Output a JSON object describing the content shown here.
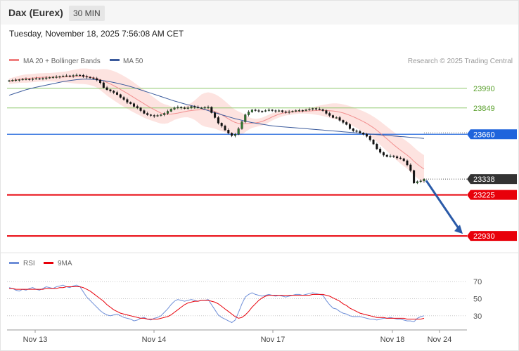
{
  "header": {
    "title": "Dax (Eurex)",
    "timeframe": "30 MIN"
  },
  "datetime": "Tuesday, November 18, 2025 7:56:08 AM CET",
  "legend": {
    "bb_label": "MA 20 + Bollinger Bands",
    "ma50_label": "MA 50",
    "rsi_label": "RSI",
    "ma9_label": "9MA"
  },
  "credit": "Research © 2025 Trading Central",
  "colors": {
    "bb": "#f08080",
    "bb_fill": "#fcd9d6",
    "ma50": "#3a5a9c",
    "candle": "#2d7a2d",
    "resistance": "#8dc86b",
    "pivot": "#1e64dc",
    "support": "#e8000a",
    "forecast": "#2a5aa8",
    "rsi": "#6f8fd8",
    "rsi_ma": "#e8000a"
  },
  "chart_data": [
    {
      "type": "candlestick",
      "ylim": [
        22850,
        24120
      ],
      "x_ticks": [
        "Nov 13",
        "Nov 14",
        "Nov 17",
        "Nov 18",
        "Nov 24"
      ],
      "levels": [
        {
          "label": "23990",
          "value": 23990,
          "kind": "resistance"
        },
        {
          "label": "23849",
          "value": 23849,
          "kind": "resistance"
        },
        {
          "label": "23660",
          "value": 23660,
          "kind": "pivot"
        },
        {
          "label": "23338",
          "value": 23338,
          "kind": "last"
        },
        {
          "label": "23225",
          "value": 23225,
          "kind": "support"
        },
        {
          "label": "22930",
          "value": 22930,
          "kind": "support"
        }
      ],
      "close": [
        24045,
        24048,
        24050,
        24052,
        24055,
        24056,
        24055,
        24058,
        24060,
        24058,
        24062,
        24065,
        24068,
        24070,
        24072,
        24075,
        24078,
        24080,
        24078,
        24082,
        24085,
        24084,
        24075,
        24070,
        24065,
        24060,
        24050,
        24030,
        23995,
        23980,
        23970,
        23960,
        23945,
        23925,
        23910,
        23890,
        23880,
        23860,
        23850,
        23830,
        23810,
        23800,
        23795,
        23790,
        23795,
        23800,
        23810,
        23825,
        23840,
        23850,
        23855,
        23850,
        23845,
        23850,
        23860,
        23855,
        23850,
        23850,
        23853,
        23855,
        23815,
        23780,
        23740,
        23720,
        23690,
        23668,
        23650,
        23660,
        23700,
        23750,
        23800,
        23820,
        23835,
        23830,
        23826,
        23825,
        23830,
        23835,
        23830,
        23825,
        23830,
        23822,
        23818,
        23822,
        23826,
        23830,
        23832,
        23830,
        23835,
        23840,
        23845,
        23842,
        23838,
        23830,
        23810,
        23795,
        23780,
        23780,
        23760,
        23745,
        23730,
        23700,
        23685,
        23680,
        23670,
        23660,
        23645,
        23620,
        23590,
        23555,
        23530,
        23510,
        23500,
        23505,
        23500,
        23490,
        23485,
        23470,
        23440,
        23400,
        23310,
        23320,
        23325,
        23338
      ],
      "ma20": [
        24040,
        24045,
        24050,
        24055,
        24058,
        24060,
        24062,
        24064,
        24066,
        24068,
        24069,
        24070,
        24070,
        24070,
        24070,
        24070,
        24071,
        24072,
        24073,
        24074,
        24075,
        24076,
        24076,
        24075,
        24071,
        24066,
        24060,
        24052,
        24043,
        24032,
        24021,
        24009,
        23996,
        23982,
        23968,
        23954,
        23939,
        23924,
        23909,
        23894,
        23879,
        23864,
        23850,
        23837,
        23824,
        23812,
        23806,
        23804,
        23805,
        23808,
        23812,
        23817,
        23822,
        23827,
        23830,
        23833,
        23835,
        23836,
        23836,
        23836,
        23831,
        23824,
        23813,
        23800,
        23786,
        23771,
        23757,
        23745,
        23738,
        23735,
        23736,
        23738,
        23740,
        23742,
        23746,
        23752,
        23762,
        23773,
        23785,
        23795,
        23804,
        23811,
        23815,
        23818,
        23820,
        23822,
        23824,
        23825,
        23826,
        23827,
        23829,
        23830,
        23831,
        23831,
        23830,
        23829,
        23827,
        23824,
        23819,
        23813,
        23805,
        23796,
        23786,
        23775,
        23763,
        23751,
        23738,
        23723,
        23707,
        23689,
        23669,
        23648,
        23627,
        23606,
        23585,
        23565,
        23546,
        23528,
        23510,
        23490,
        23466,
        23445,
        23427,
        23410
      ],
      "bb_half_width": [
        20,
        22,
        24,
        26,
        28,
        30,
        30,
        30,
        30,
        30,
        30,
        30,
        30,
        32,
        34,
        36,
        38,
        40,
        44,
        48,
        52,
        55,
        56,
        57,
        58,
        60,
        65,
        75,
        85,
        95,
        100,
        105,
        108,
        110,
        110,
        110,
        110,
        108,
        105,
        102,
        100,
        95,
        90,
        85,
        80,
        75,
        70,
        65,
        55,
        45,
        40,
        38,
        40,
        45,
        55,
        70,
        90,
        110,
        120,
        125,
        125,
        124,
        122,
        118,
        112,
        105,
        98,
        92,
        85,
        78,
        60,
        45,
        35,
        30,
        28,
        28,
        28,
        28,
        26,
        25,
        24,
        22,
        20,
        20,
        18,
        17,
        16,
        16,
        18,
        20,
        25,
        30,
        35,
        40,
        45,
        50,
        55,
        58,
        60,
        62,
        64,
        66,
        68,
        70,
        72,
        74,
        76,
        78,
        80,
        82,
        84,
        86,
        88,
        90,
        92,
        94,
        96,
        97,
        98,
        99,
        100,
        100,
        100,
        100
      ],
      "ma50": [
        23940,
        23948,
        23956,
        23964,
        23972,
        23980,
        23986,
        23992,
        23998,
        24003,
        24008,
        24013,
        24018,
        24023,
        24028,
        24033,
        24038,
        24042,
        24046,
        24049,
        24052,
        24054,
        24056,
        24056,
        24055,
        24053,
        24051,
        24048,
        24045,
        24041,
        24037,
        24032,
        24027,
        24021,
        24015,
        24009,
        24002,
        23995,
        23987,
        23979,
        23971,
        23963,
        23955,
        23947,
        23939,
        23931,
        23923,
        23915,
        23907,
        23899,
        23892,
        23885,
        23878,
        23872,
        23866,
        23860,
        23853,
        23846,
        23838,
        23830,
        23822,
        23815,
        23808,
        23800,
        23793,
        23786,
        23779,
        23772,
        23766,
        23760,
        23754,
        23749,
        23744,
        23740,
        23736,
        23732,
        23728,
        23724,
        23721,
        23718,
        23716,
        23714,
        23712,
        23710,
        23708,
        23706,
        23704,
        23702,
        23700,
        23698,
        23696,
        23694,
        23692,
        23690,
        23688,
        23686,
        23684,
        23682,
        23680,
        23678,
        23676,
        23674,
        23672,
        23670,
        23668,
        23666,
        23664,
        23662,
        23660,
        23658,
        23656,
        23654,
        23652,
        23650,
        23648,
        23646,
        23644,
        23642,
        23640,
        23638,
        23636,
        23634,
        23632,
        23630
      ],
      "x_index_range": [
        0,
        123
      ]
    },
    {
      "type": "line",
      "ylim": [
        15,
        85
      ],
      "y_ticks": [
        70,
        50,
        30
      ],
      "series": [
        {
          "name": "RSI",
          "values": [
            63,
            62,
            60,
            59,
            61,
            60,
            62,
            63,
            61,
            60,
            62,
            64,
            63,
            62,
            64,
            65,
            66,
            64,
            63,
            65,
            66,
            64,
            58,
            52,
            48,
            44,
            40,
            36,
            33,
            31,
            30,
            31,
            32,
            30,
            28,
            27,
            26,
            24,
            25,
            27,
            28,
            26,
            25,
            27,
            28,
            30,
            34,
            38,
            43,
            47,
            49,
            48,
            47,
            48,
            49,
            48,
            47,
            48,
            48,
            49,
            43,
            37,
            31,
            28,
            26,
            24,
            22,
            25,
            34,
            44,
            52,
            55,
            57,
            55,
            54,
            53,
            54,
            55,
            54,
            53,
            54,
            53,
            52,
            53,
            54,
            55,
            55,
            54,
            55,
            56,
            57,
            56,
            55,
            54,
            48,
            43,
            39,
            38,
            35,
            33,
            32,
            30,
            29,
            29,
            29,
            28,
            27,
            26,
            26,
            25,
            26,
            27,
            27,
            28,
            27,
            26,
            26,
            25,
            24,
            24,
            23,
            27,
            29,
            30
          ]
        },
        {
          "name": "9MA",
          "values": [
            62,
            62,
            61,
            61,
            61,
            61,
            61,
            61,
            61,
            61,
            61,
            62,
            62,
            62,
            62,
            63,
            63,
            64,
            64,
            64,
            64,
            64,
            63,
            61,
            59,
            56,
            53,
            50,
            47,
            43,
            40,
            37,
            35,
            33,
            32,
            31,
            30,
            29,
            28,
            27,
            27,
            26,
            26,
            26,
            26,
            27,
            28,
            29,
            31,
            34,
            37,
            40,
            43,
            45,
            46,
            47,
            47,
            48,
            48,
            48,
            47,
            46,
            44,
            41,
            38,
            35,
            32,
            29,
            27,
            28,
            31,
            35,
            40,
            44,
            48,
            51,
            53,
            54,
            54,
            54,
            54,
            54,
            54,
            54,
            54,
            54,
            54,
            54,
            54,
            54,
            55,
            55,
            55,
            55,
            54,
            53,
            51,
            49,
            47,
            44,
            42,
            39,
            37,
            35,
            33,
            32,
            31,
            30,
            29,
            28,
            28,
            28,
            27,
            27,
            27,
            27,
            27,
            27,
            26,
            26,
            26,
            26,
            26,
            27
          ]
        }
      ]
    }
  ]
}
